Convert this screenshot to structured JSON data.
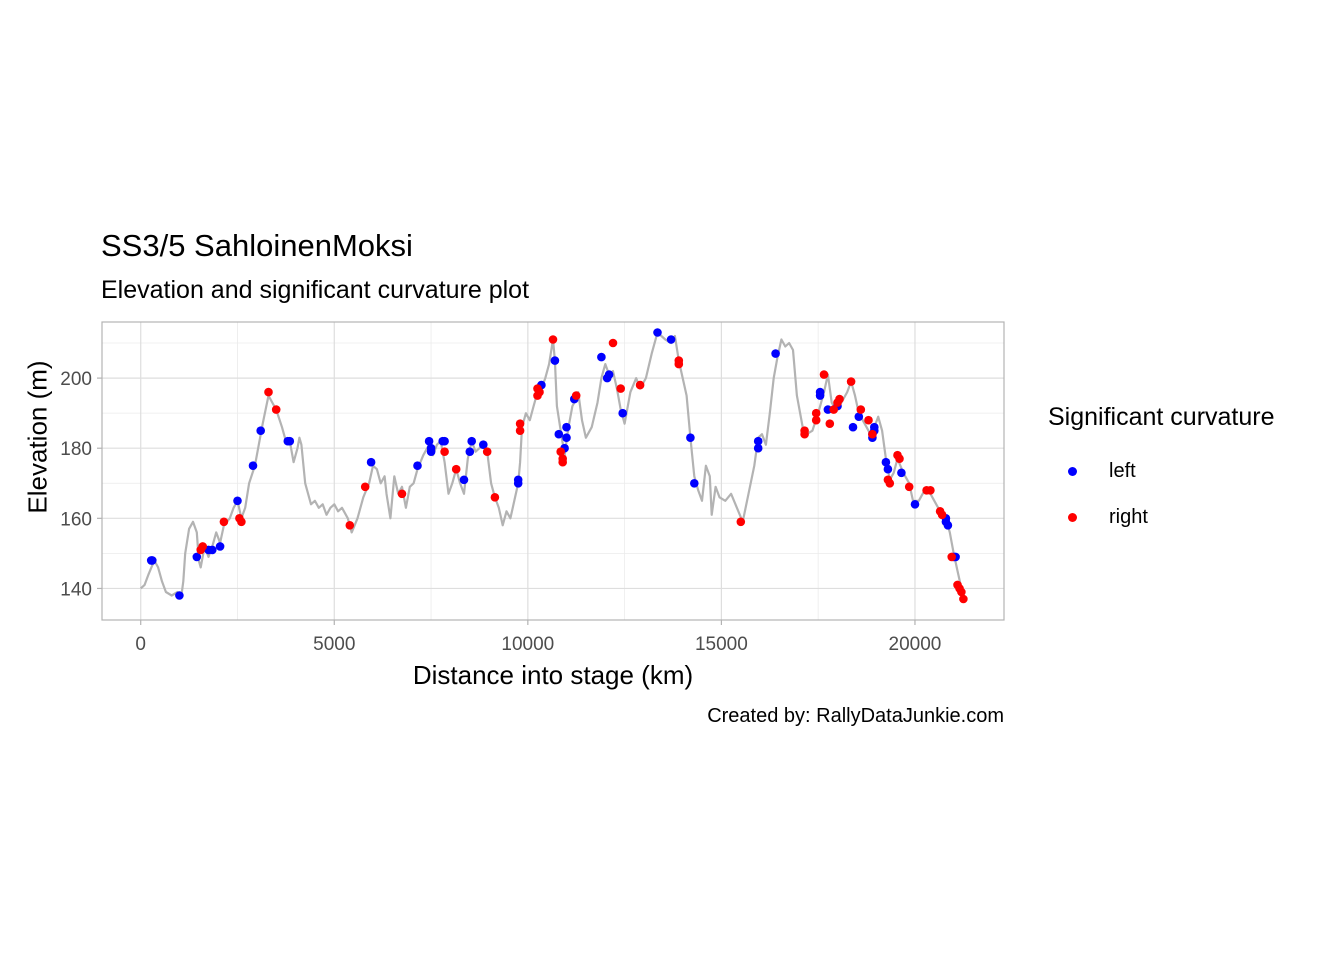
{
  "chart_data": {
    "type": "scatter",
    "title": "SS3/5 SahloinenMoksi",
    "subtitle": "Elevation and significant curvature plot",
    "xlabel": "Distance into stage (km)",
    "ylabel": "Elevation (m)",
    "caption": "Created by: RallyDataJunkie.com",
    "xlim": [
      -1000,
      22300
    ],
    "ylim": [
      131,
      216
    ],
    "x_ticks": [
      0,
      5000,
      10000,
      15000,
      20000
    ],
    "y_ticks": [
      140,
      160,
      180,
      200
    ],
    "grid": true,
    "legend_position": "right",
    "legend_title": "Significant curvature",
    "line_color": "#b3b3b3",
    "elevation_profile": [
      [
        0,
        140
      ],
      [
        100,
        141
      ],
      [
        200,
        144
      ],
      [
        350,
        148
      ],
      [
        450,
        146
      ],
      [
        550,
        142
      ],
      [
        650,
        139
      ],
      [
        800,
        138
      ],
      [
        950,
        139
      ],
      [
        1050,
        138
      ],
      [
        1100,
        142
      ],
      [
        1150,
        150
      ],
      [
        1250,
        157
      ],
      [
        1350,
        159
      ],
      [
        1450,
        156
      ],
      [
        1500,
        148
      ],
      [
        1550,
        146
      ],
      [
        1650,
        152
      ],
      [
        1750,
        149
      ],
      [
        1850,
        152
      ],
      [
        1950,
        156
      ],
      [
        2050,
        153
      ],
      [
        2150,
        158
      ],
      [
        2300,
        160
      ],
      [
        2400,
        163
      ],
      [
        2500,
        165
      ],
      [
        2600,
        160
      ],
      [
        2700,
        163
      ],
      [
        2800,
        170
      ],
      [
        2950,
        175
      ],
      [
        3050,
        181
      ],
      [
        3150,
        187
      ],
      [
        3300,
        195
      ],
      [
        3400,
        193
      ],
      [
        3500,
        191
      ],
      [
        3650,
        186
      ],
      [
        3750,
        182
      ],
      [
        3850,
        182
      ],
      [
        3950,
        176
      ],
      [
        4050,
        180
      ],
      [
        4100,
        183
      ],
      [
        4150,
        181
      ],
      [
        4250,
        170
      ],
      [
        4400,
        164
      ],
      [
        4500,
        165
      ],
      [
        4600,
        163
      ],
      [
        4700,
        164
      ],
      [
        4800,
        161
      ],
      [
        4900,
        163
      ],
      [
        5000,
        164
      ],
      [
        5100,
        162
      ],
      [
        5200,
        163
      ],
      [
        5350,
        160
      ],
      [
        5450,
        156
      ],
      [
        5600,
        160
      ],
      [
        5750,
        166
      ],
      [
        5900,
        170
      ],
      [
        6000,
        175
      ],
      [
        6100,
        174
      ],
      [
        6200,
        170
      ],
      [
        6300,
        172
      ],
      [
        6350,
        167
      ],
      [
        6450,
        160
      ],
      [
        6550,
        172
      ],
      [
        6650,
        167
      ],
      [
        6750,
        169
      ],
      [
        6850,
        163
      ],
      [
        6950,
        169
      ],
      [
        7050,
        170
      ],
      [
        7150,
        174
      ],
      [
        7300,
        178
      ],
      [
        7450,
        181
      ],
      [
        7550,
        178
      ],
      [
        7650,
        181
      ],
      [
        7750,
        182
      ],
      [
        7850,
        176
      ],
      [
        7950,
        167
      ],
      [
        8050,
        170
      ],
      [
        8150,
        174
      ],
      [
        8250,
        170
      ],
      [
        8350,
        167
      ],
      [
        8450,
        177
      ],
      [
        8550,
        182
      ],
      [
        8650,
        179
      ],
      [
        8750,
        180
      ],
      [
        8850,
        181
      ],
      [
        8950,
        179
      ],
      [
        9050,
        170
      ],
      [
        9150,
        166
      ],
      [
        9250,
        163
      ],
      [
        9350,
        158
      ],
      [
        9450,
        162
      ],
      [
        9550,
        160
      ],
      [
        9650,
        165
      ],
      [
        9750,
        170
      ],
      [
        9800,
        176
      ],
      [
        9850,
        186
      ],
      [
        9950,
        190
      ],
      [
        10050,
        188
      ],
      [
        10150,
        192
      ],
      [
        10250,
        196
      ],
      [
        10350,
        197
      ],
      [
        10450,
        200
      ],
      [
        10550,
        204
      ],
      [
        10650,
        211
      ],
      [
        10700,
        205
      ],
      [
        10750,
        192
      ],
      [
        10850,
        185
      ],
      [
        10950,
        178
      ],
      [
        11050,
        186
      ],
      [
        11150,
        192
      ],
      [
        11250,
        194
      ],
      [
        11300,
        196
      ],
      [
        11400,
        188
      ],
      [
        11500,
        183
      ],
      [
        11650,
        186
      ],
      [
        11800,
        193
      ],
      [
        11900,
        200
      ],
      [
        12000,
        204
      ],
      [
        12100,
        201
      ],
      [
        12200,
        202
      ],
      [
        12300,
        197
      ],
      [
        12400,
        191
      ],
      [
        12500,
        187
      ],
      [
        12650,
        196
      ],
      [
        12800,
        200
      ],
      [
        12900,
        197
      ],
      [
        13050,
        200
      ],
      [
        13200,
        207
      ],
      [
        13350,
        213
      ],
      [
        13450,
        212
      ],
      [
        13550,
        211
      ],
      [
        13700,
        210
      ],
      [
        13800,
        212
      ],
      [
        13900,
        205
      ],
      [
        14000,
        200
      ],
      [
        14100,
        195
      ],
      [
        14200,
        183
      ],
      [
        14300,
        172
      ],
      [
        14400,
        168
      ],
      [
        14500,
        165
      ],
      [
        14600,
        175
      ],
      [
        14700,
        172
      ],
      [
        14750,
        161
      ],
      [
        14850,
        169
      ],
      [
        14950,
        166
      ],
      [
        15100,
        165
      ],
      [
        15250,
        167
      ],
      [
        15400,
        163
      ],
      [
        15550,
        159
      ],
      [
        15700,
        167
      ],
      [
        15850,
        175
      ],
      [
        15950,
        183
      ],
      [
        16050,
        184
      ],
      [
        16150,
        181
      ],
      [
        16250,
        190
      ],
      [
        16350,
        200
      ],
      [
        16450,
        206
      ],
      [
        16550,
        211
      ],
      [
        16650,
        209
      ],
      [
        16750,
        210
      ],
      [
        16850,
        208
      ],
      [
        16950,
        195
      ],
      [
        17100,
        186
      ],
      [
        17200,
        184
      ],
      [
        17350,
        185
      ],
      [
        17500,
        190
      ],
      [
        17650,
        196
      ],
      [
        17750,
        201
      ],
      [
        17850,
        193
      ],
      [
        17950,
        191
      ],
      [
        18100,
        193
      ],
      [
        18250,
        196
      ],
      [
        18350,
        199
      ],
      [
        18450,
        195
      ],
      [
        18550,
        190
      ],
      [
        18650,
        188
      ],
      [
        18750,
        186
      ],
      [
        18850,
        184
      ],
      [
        18950,
        186
      ],
      [
        19050,
        189
      ],
      [
        19150,
        185
      ],
      [
        19250,
        177
      ],
      [
        19350,
        171
      ],
      [
        19450,
        173
      ],
      [
        19550,
        177
      ],
      [
        19700,
        173
      ],
      [
        19850,
        170
      ],
      [
        19950,
        165
      ],
      [
        20100,
        165
      ],
      [
        20250,
        168
      ],
      [
        20350,
        168
      ],
      [
        20500,
        165
      ],
      [
        20650,
        162
      ],
      [
        20800,
        160
      ],
      [
        20900,
        156
      ],
      [
        21000,
        150
      ],
      [
        21100,
        145
      ],
      [
        21200,
        140
      ],
      [
        21300,
        137
      ]
    ],
    "series": [
      {
        "name": "left",
        "color": "#0000ff",
        "points": [
          [
            270,
            148
          ],
          [
            300,
            148
          ],
          [
            1000,
            138
          ],
          [
            1450,
            149
          ],
          [
            1750,
            151
          ],
          [
            1850,
            151
          ],
          [
            2050,
            152
          ],
          [
            2500,
            165
          ],
          [
            2900,
            175
          ],
          [
            3100,
            185
          ],
          [
            3800,
            182
          ],
          [
            3850,
            182
          ],
          [
            5950,
            176
          ],
          [
            7150,
            175
          ],
          [
            7450,
            182
          ],
          [
            7500,
            180
          ],
          [
            7500,
            179
          ],
          [
            7800,
            182
          ],
          [
            7850,
            182
          ],
          [
            8350,
            171
          ],
          [
            8500,
            179
          ],
          [
            8550,
            182
          ],
          [
            8850,
            181
          ],
          [
            9750,
            171
          ],
          [
            9750,
            170
          ],
          [
            10350,
            198
          ],
          [
            10700,
            205
          ],
          [
            10800,
            184
          ],
          [
            10950,
            180
          ],
          [
            11000,
            183
          ],
          [
            11000,
            186
          ],
          [
            11200,
            194
          ],
          [
            11900,
            206
          ],
          [
            12050,
            200
          ],
          [
            12100,
            201
          ],
          [
            12450,
            190
          ],
          [
            13350,
            213
          ],
          [
            13700,
            211
          ],
          [
            14200,
            183
          ],
          [
            14300,
            170
          ],
          [
            15950,
            182
          ],
          [
            15950,
            180
          ],
          [
            16400,
            207
          ],
          [
            17550,
            196
          ],
          [
            17550,
            195
          ],
          [
            17750,
            191
          ],
          [
            18000,
            192
          ],
          [
            18400,
            186
          ],
          [
            18550,
            189
          ],
          [
            18900,
            183
          ],
          [
            18900,
            184
          ],
          [
            18950,
            186
          ],
          [
            18950,
            185
          ],
          [
            19250,
            176
          ],
          [
            19300,
            174
          ],
          [
            19650,
            173
          ],
          [
            20000,
            164
          ],
          [
            20800,
            160
          ],
          [
            20800,
            159
          ],
          [
            20850,
            158
          ],
          [
            21000,
            149
          ],
          [
            21050,
            149
          ]
        ]
      },
      {
        "name": "right",
        "color": "#ff0000",
        "points": [
          [
            1550,
            151
          ],
          [
            1600,
            152
          ],
          [
            2150,
            159
          ],
          [
            2550,
            160
          ],
          [
            2600,
            159
          ],
          [
            3300,
            196
          ],
          [
            3500,
            191
          ],
          [
            5400,
            158
          ],
          [
            5800,
            169
          ],
          [
            6750,
            167
          ],
          [
            7850,
            179
          ],
          [
            8150,
            174
          ],
          [
            8950,
            179
          ],
          [
            9150,
            166
          ],
          [
            9800,
            187
          ],
          [
            9800,
            185
          ],
          [
            10250,
            197
          ],
          [
            10250,
            195
          ],
          [
            10300,
            196
          ],
          [
            10650,
            211
          ],
          [
            10850,
            179
          ],
          [
            10900,
            177
          ],
          [
            10900,
            176
          ],
          [
            11250,
            195
          ],
          [
            12200,
            210
          ],
          [
            12400,
            197
          ],
          [
            12900,
            198
          ],
          [
            13900,
            205
          ],
          [
            13900,
            204
          ],
          [
            15500,
            159
          ],
          [
            17150,
            185
          ],
          [
            17150,
            184
          ],
          [
            17450,
            190
          ],
          [
            17450,
            188
          ],
          [
            17650,
            201
          ],
          [
            17800,
            187
          ],
          [
            17900,
            191
          ],
          [
            18000,
            193
          ],
          [
            18050,
            194
          ],
          [
            18350,
            199
          ],
          [
            18600,
            191
          ],
          [
            18800,
            188
          ],
          [
            18900,
            184
          ],
          [
            19300,
            171
          ],
          [
            19350,
            170
          ],
          [
            19550,
            178
          ],
          [
            19600,
            177
          ],
          [
            19850,
            169
          ],
          [
            20300,
            168
          ],
          [
            20400,
            168
          ],
          [
            20650,
            162
          ],
          [
            20700,
            161
          ],
          [
            20950,
            149
          ],
          [
            21100,
            141
          ],
          [
            21150,
            140
          ],
          [
            21200,
            139
          ],
          [
            21250,
            137
          ]
        ]
      }
    ]
  }
}
